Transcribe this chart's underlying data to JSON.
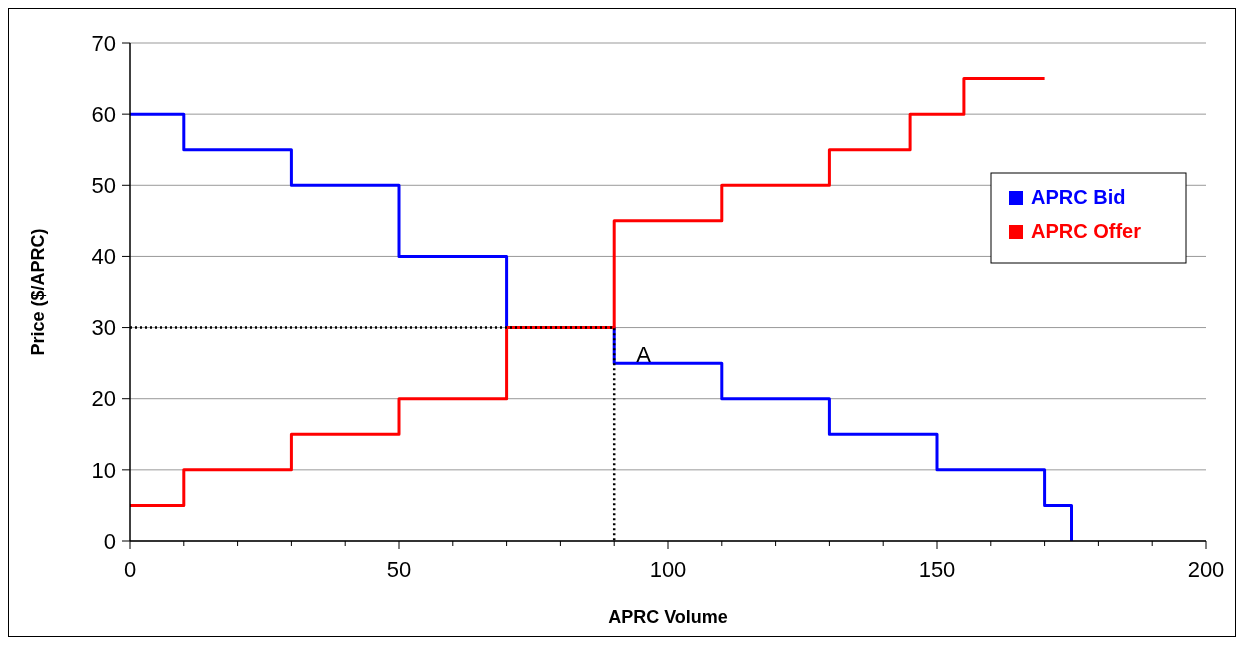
{
  "chart_data": {
    "type": "step",
    "xlabel": "APRC Volume",
    "ylabel": "Price ($/APRC)",
    "xlim": [
      0,
      200
    ],
    "xticks": [
      0,
      {
        "value": 10,
        "label": null
      },
      {
        "value": 20,
        "label": null
      },
      {
        "value": 30,
        "label": null
      },
      {
        "value": 40,
        "label": null
      },
      50,
      {
        "value": 60,
        "label": null
      },
      {
        "value": 70,
        "label": null
      },
      {
        "value": 80,
        "label": null
      },
      {
        "value": 90,
        "label": null
      },
      100,
      {
        "value": 110,
        "label": null
      },
      {
        "value": 120,
        "label": null
      },
      {
        "value": 130,
        "label": null
      },
      {
        "value": 140,
        "label": null
      },
      150,
      {
        "value": 160,
        "label": null
      },
      {
        "value": 170,
        "label": null
      },
      {
        "value": 180,
        "label": null
      },
      {
        "value": 190,
        "label": null
      },
      200
    ],
    "ylim": [
      0,
      70
    ],
    "yticks": [
      0,
      10,
      20,
      30,
      40,
      50,
      60,
      70
    ],
    "grid": "y",
    "legend": "top right",
    "marker": "none",
    "series": [
      {
        "name": "APRC Bid",
        "color": "#0000ff",
        "x": [
          0,
          10,
          30,
          50,
          70,
          90,
          110,
          130,
          150,
          170,
          175
        ],
        "values": [
          60,
          55,
          50,
          40,
          30,
          25,
          20,
          15,
          10,
          5,
          0
        ]
      },
      {
        "name": "APRC Offer",
        "color": "#ff0000",
        "x": [
          0,
          10,
          30,
          50,
          70,
          90,
          110,
          130,
          145,
          155,
          170
        ],
        "values": [
          5,
          10,
          15,
          20,
          30,
          45,
          50,
          55,
          60,
          65,
          65
        ]
      },
      {
        "type": "line",
        "color": "#000000",
        "line_style": "dotted",
        "x": [
          0,
          90,
          90
        ],
        "values": [
          30,
          30,
          0
        ]
      }
    ],
    "annotations": [
      {
        "text": "A",
        "x": 90,
        "y": 30
      }
    ]
  }
}
